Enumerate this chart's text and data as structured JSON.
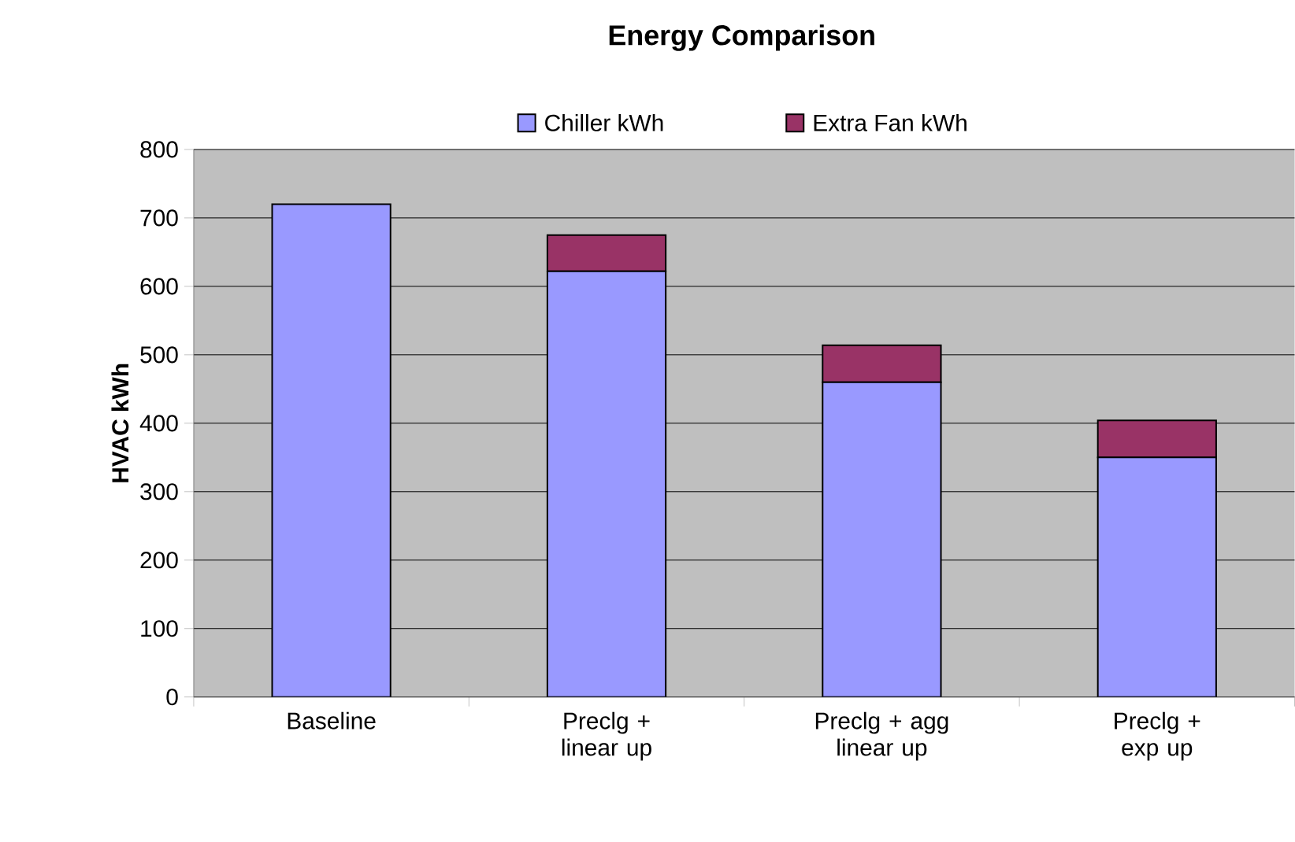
{
  "chart_data": {
    "type": "bar",
    "title": "Energy Comparison",
    "ylabel": "HVAC kWh",
    "categories": [
      "Baseline",
      "Preclg + linear up",
      "Preclg + agg linear up",
      "Preclg + exp up"
    ],
    "stacked": true,
    "series": [
      {
        "name": "Chiller kWh",
        "color": "#9999ff",
        "values": [
          720,
          622,
          460,
          350
        ]
      },
      {
        "name": "Extra Fan kWh",
        "color": "#993366",
        "values": [
          null,
          53,
          54,
          54
        ]
      }
    ],
    "ylim": [
      0,
      800
    ],
    "yticks": [
      0,
      100,
      200,
      300,
      400,
      500,
      600,
      700,
      800
    ],
    "grid": "y",
    "legend": "top"
  }
}
